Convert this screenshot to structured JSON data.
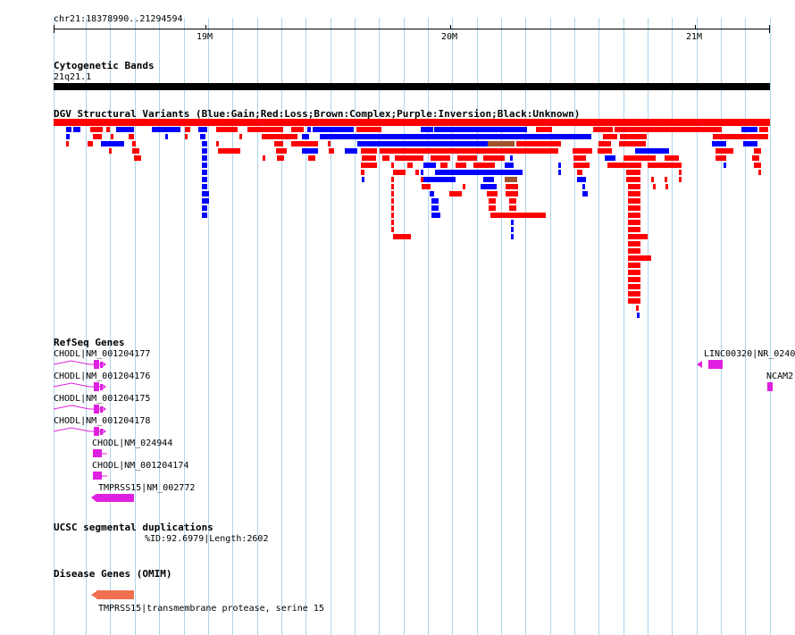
{
  "location": "chr21:18378990..21294594",
  "ruler": {
    "labels": [
      "19M",
      "20M",
      "21M"
    ],
    "start": 18378990,
    "end": 21294594
  },
  "tracks": {
    "cyto": {
      "title": "Cytogenetic Bands",
      "band": "21q21.1"
    },
    "dgv": {
      "title": "DGV Structural Variants (Blue:Gain;Red:Loss;Brown:Complex;Purple:Inversion;Black:Unknown)"
    },
    "refseq": {
      "title": "RefSeq Genes",
      "genes": [
        "CHODL|NM_001204177",
        "CHODL|NM_001204176",
        "CHODL|NM_001204175",
        "CHODL|NM_001204178",
        "CHODL|NM_024944",
        "CHODL|NM_001204174",
        "TMPRSS15|NM_002772",
        "LINC00320|NR_0240",
        "NCAM2"
      ]
    },
    "segdup": {
      "title": "UCSC segmental duplications",
      "item": "%ID:92.6979|Length:2602"
    },
    "omim": {
      "title": "Disease Genes (OMIM)",
      "item": "TMPRSS15|transmembrane protease, serine 15"
    }
  },
  "colors": {
    "gain": "#0000ff",
    "loss": "#ff0000",
    "complex": "#a0522d",
    "gene": "#e020e0",
    "omim": "#f07050",
    "grid": "#aed4ea"
  }
}
